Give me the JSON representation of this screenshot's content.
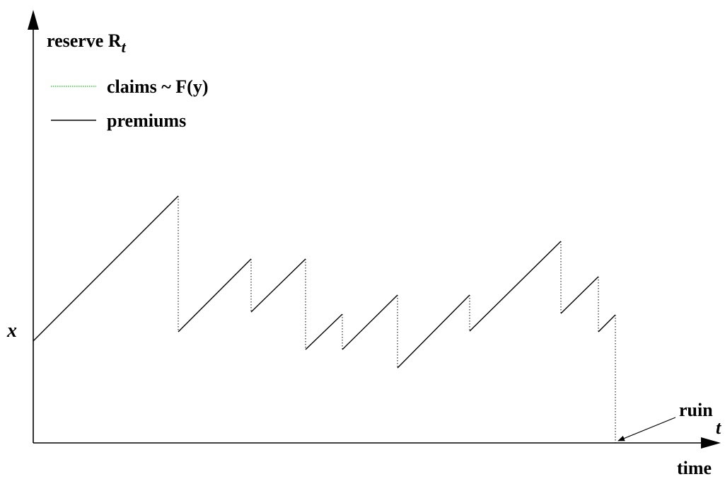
{
  "labels": {
    "y_axis": "reserve R",
    "y_axis_sub": "t",
    "x_start": "x",
    "t": "t",
    "time": "time",
    "ruin": "ruin"
  },
  "legend": [
    {
      "label": "claims ~ F(y)",
      "color": "#00cc00",
      "style": "dotted"
    },
    {
      "label": "premiums",
      "color": "#000000",
      "style": "solid"
    }
  ],
  "colors": {
    "premium_line": "#000000",
    "claim_line": "#000000",
    "axis": "#000000"
  }
}
